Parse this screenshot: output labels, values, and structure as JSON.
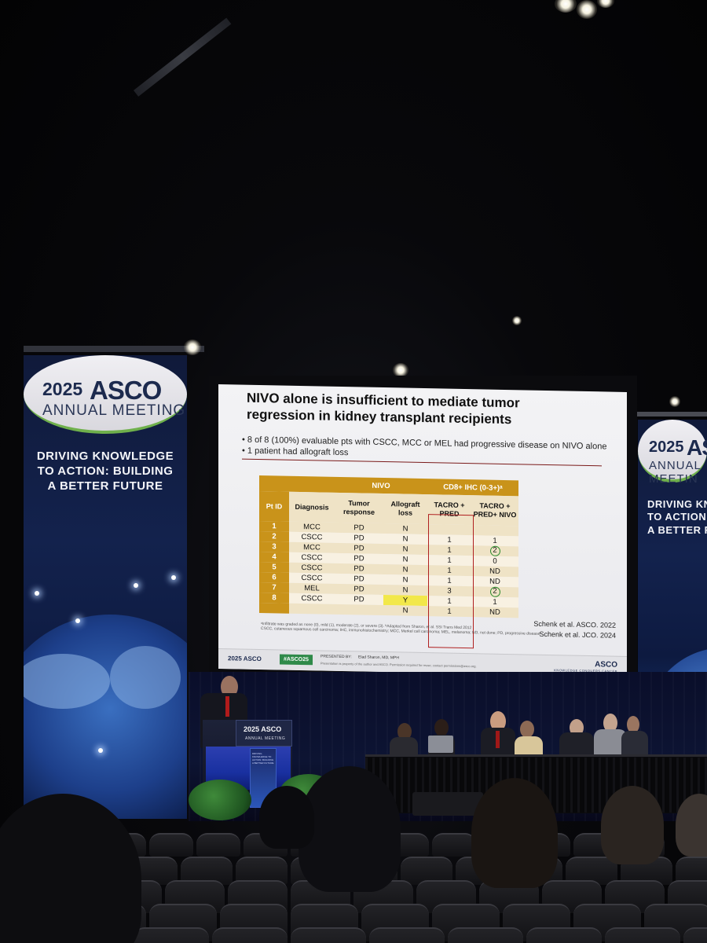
{
  "banner_left": {
    "year": "2025",
    "brand": "ASCO",
    "subtitle": "ANNUAL MEETING",
    "tagline_line1": "DRIVING KNOWLEDGE",
    "tagline_line2": "TO ACTION: BUILDING",
    "tagline_line3": "A BETTER FUTURE"
  },
  "banner_right": {
    "year": "2025",
    "brand": "ASC",
    "subtitle": "ANNUAL MEETIN",
    "tagline_line1": "DRIVING KNOW",
    "tagline_line2": "TO ACTION: B",
    "tagline_line3": "A BETTER FUT"
  },
  "slide": {
    "title_line1": "NIVO alone is insufficient to mediate tumor",
    "title_line2": "regression in kidney transplant recipients",
    "bullet1": "• 8 of 8 (100%) evaluable pts with CSCC, MCC or MEL had progressive disease on NIVO alone",
    "bullet2": "• 1 patient had allograft loss",
    "table": {
      "group_nivo": "NIVO",
      "group_cd8": "CD8+ IHC (0-3+)ᵃ",
      "col_pid": "Pt ID",
      "col_diagnosis": "Diagnosis",
      "col_response": "Tumor response",
      "col_allograft": "Allograft loss",
      "col_tacro": "TACRO + PRED",
      "col_tacro_nivo": "TACRO + PRED+ NIVO",
      "rows": [
        {
          "id": "1",
          "dx": "MCC",
          "resp": "PD",
          "loss": "N",
          "tp": "",
          "tpn": ""
        },
        {
          "id": "2",
          "dx": "CSCC",
          "resp": "PD",
          "loss": "N",
          "tp": "1",
          "tpn": "1"
        },
        {
          "id": "3",
          "dx": "MCC",
          "resp": "PD",
          "loss": "N",
          "tp": "1",
          "tpn": "2"
        },
        {
          "id": "4",
          "dx": "CSCC",
          "resp": "PD",
          "loss": "N",
          "tp": "1",
          "tpn": "0"
        },
        {
          "id": "5",
          "dx": "CSCC",
          "resp": "PD",
          "loss": "N",
          "tp": "1",
          "tpn": "ND"
        },
        {
          "id": "6",
          "dx": "CSCC",
          "resp": "PD",
          "loss": "N",
          "tp": "1",
          "tpn": "ND"
        },
        {
          "id": "7",
          "dx": "MEL",
          "resp": "PD",
          "loss": "N",
          "tp": "3",
          "tpn": "2"
        },
        {
          "id": "8",
          "dx": "CSCC",
          "resp": "PD",
          "loss": "Y",
          "tp": "1",
          "tpn": "1"
        },
        {
          "id": "",
          "dx": "",
          "resp": "",
          "loss": "N",
          "tp": "1",
          "tpn": "ND"
        }
      ]
    },
    "footnote1": "ᵃInfiltrate was graded as none (0), mild (1), moderate (2), or severe (3). ᵇAdapted from Sharon, et al. SSI Trans Med 2012",
    "footnote2": "CSCC, cutaneous squamous cell carcinoma; IHC, immunohistochemistry; MCC, Merkel cell carcinoma; MEL, melanoma; ND, not done; PD, progressive disease",
    "cite1": "Schenk et al. ASCO. 2022",
    "cite2": "Schenk et al. JCO. 2024",
    "footer_logo": "2025 ASCO",
    "footer_hashtag": "#ASCO25",
    "footer_presented_label": "PRESENTED BY:",
    "footer_presenter": "Elad Sharon, MD, MPH",
    "footer_copyright": "Presentation is property of the author and ASCO. Permission required for reuse; contact permissions@asco.org.",
    "footer_asco": "ASCO",
    "footer_tagline": "KNOWLEDGE CONQUERS CANCER"
  },
  "podium": {
    "year_brand": "2025 ASCO",
    "subtitle": "ANNUAL MEETING",
    "panel_text": "DRIVING KNOWLEDGE TO ACTION: BUILDING A BETTER FUTURE"
  },
  "colors": {
    "table_header": "#c9931a",
    "table_row_light": "#efe3c6",
    "highlight_box": "#b02020",
    "circle": "#2b8a2b",
    "banner_navy": "#13224d",
    "accent_green": "#6fb04c"
  }
}
